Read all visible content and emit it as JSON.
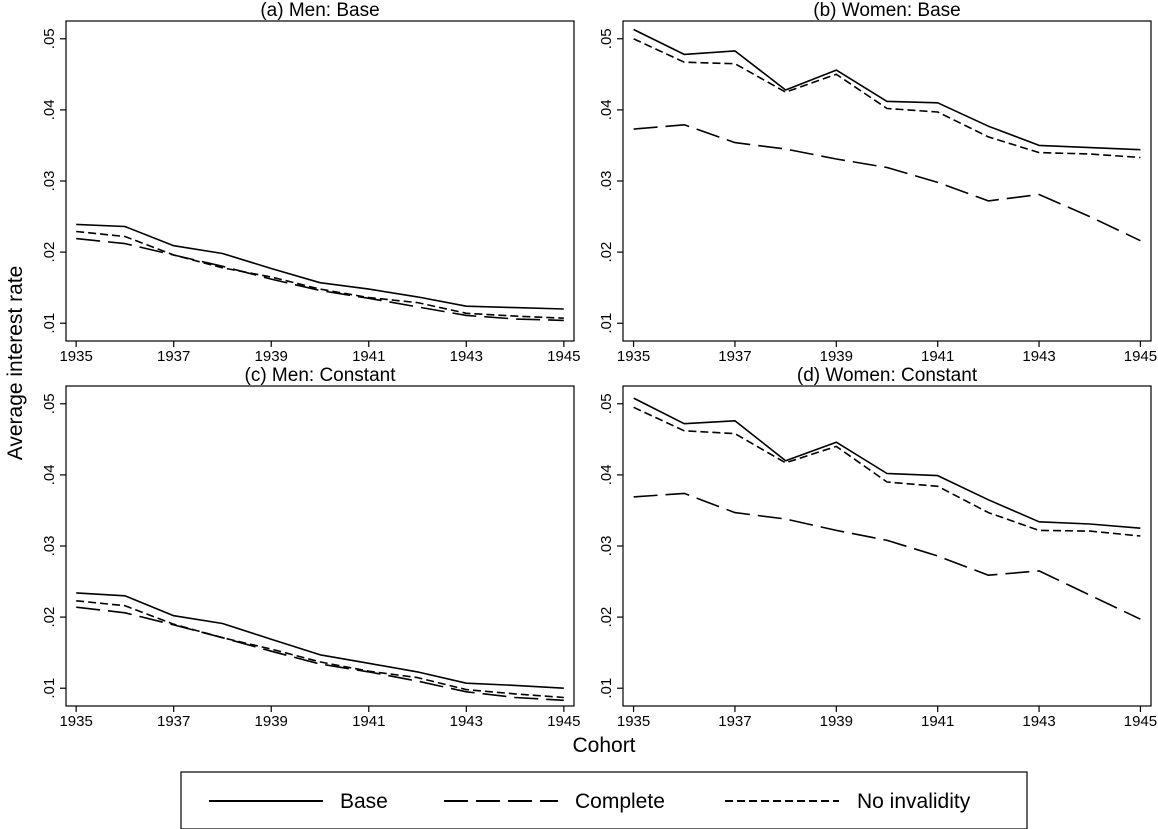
{
  "figure": {
    "ylabel": "Average interest rate",
    "xlabel": "Cohort"
  },
  "legend": {
    "position": "bottom",
    "entries": [
      {
        "label": "Base",
        "dash": "solid"
      },
      {
        "label": "Complete",
        "dash": "long-dash"
      },
      {
        "label": "No invalidity",
        "dash": "short-dash"
      }
    ]
  },
  "chart_data": [
    {
      "type": "line",
      "title": "(a) Men: Base",
      "x": [
        1935,
        1936,
        1937,
        1938,
        1939,
        1940,
        1941,
        1942,
        1943,
        1944,
        1945
      ],
      "xticks": [
        1935,
        1937,
        1939,
        1941,
        1943,
        1945
      ],
      "xtick_labels": [
        "1935",
        "1937",
        "1939",
        "1941",
        "1943",
        "1945"
      ],
      "yticks": [
        0.01,
        0.02,
        0.03,
        0.04,
        0.05
      ],
      "ytick_labels": [
        ".01",
        ".02",
        ".03",
        ".04",
        ".05"
      ],
      "ylim": [
        0.0075,
        0.0525
      ],
      "grid": false,
      "series": [
        {
          "name": "Base",
          "values": [
            0.0239,
            0.0236,
            0.0209,
            0.0198,
            0.0177,
            0.0157,
            0.0148,
            0.0137,
            0.0124,
            0.0122,
            0.012
          ]
        },
        {
          "name": "Complete",
          "values": [
            0.0219,
            0.0212,
            0.0196,
            0.018,
            0.0162,
            0.0146,
            0.0135,
            0.0123,
            0.0111,
            0.0106,
            0.0104
          ]
        },
        {
          "name": "No invalidity",
          "values": [
            0.0229,
            0.0222,
            0.0196,
            0.0178,
            0.0165,
            0.0148,
            0.0136,
            0.0129,
            0.0114,
            0.011,
            0.0107
          ]
        }
      ]
    },
    {
      "type": "line",
      "title": "(b) Women: Base",
      "x": [
        1935,
        1936,
        1937,
        1938,
        1939,
        1940,
        1941,
        1942,
        1943,
        1944,
        1945
      ],
      "xticks": [
        1935,
        1937,
        1939,
        1941,
        1943,
        1945
      ],
      "xtick_labels": [
        "1935",
        "1937",
        "1939",
        "1941",
        "1943",
        "1945"
      ],
      "yticks": [
        0.01,
        0.02,
        0.03,
        0.04,
        0.05
      ],
      "ytick_labels": [
        ".01",
        ".02",
        ".03",
        ".04",
        ".05"
      ],
      "ylim": [
        0.0075,
        0.0525
      ],
      "grid": false,
      "series": [
        {
          "name": "Base",
          "values": [
            0.0513,
            0.0478,
            0.0483,
            0.0428,
            0.0456,
            0.0412,
            0.041,
            0.0377,
            0.035,
            0.0347,
            0.0344
          ]
        },
        {
          "name": "Complete",
          "values": [
            0.0373,
            0.0379,
            0.0354,
            0.0345,
            0.0331,
            0.0319,
            0.0298,
            0.0272,
            0.0281,
            0.025,
            0.0216
          ]
        },
        {
          "name": "No invalidity",
          "values": [
            0.05,
            0.0467,
            0.0465,
            0.0425,
            0.045,
            0.0402,
            0.0397,
            0.0362,
            0.034,
            0.0338,
            0.0333
          ]
        }
      ]
    },
    {
      "type": "line",
      "title": "(c) Men: Constant",
      "x": [
        1935,
        1936,
        1937,
        1938,
        1939,
        1940,
        1941,
        1942,
        1943,
        1944,
        1945
      ],
      "xticks": [
        1935,
        1937,
        1939,
        1941,
        1943,
        1945
      ],
      "xtick_labels": [
        "1935",
        "1937",
        "1939",
        "1941",
        "1943",
        "1945"
      ],
      "yticks": [
        0.01,
        0.02,
        0.03,
        0.04,
        0.05
      ],
      "ytick_labels": [
        ".01",
        ".02",
        ".03",
        ".04",
        ".05"
      ],
      "ylim": [
        0.0075,
        0.0525
      ],
      "grid": false,
      "series": [
        {
          "name": "Base",
          "values": [
            0.0234,
            0.023,
            0.0202,
            0.0191,
            0.0169,
            0.0147,
            0.0135,
            0.0123,
            0.0107,
            0.0104,
            0.01
          ]
        },
        {
          "name": "Complete",
          "values": [
            0.0214,
            0.0206,
            0.0189,
            0.0171,
            0.0152,
            0.0134,
            0.0123,
            0.011,
            0.0095,
            0.0087,
            0.0083
          ]
        },
        {
          "name": "No invalidity",
          "values": [
            0.0223,
            0.0216,
            0.019,
            0.0171,
            0.0155,
            0.0137,
            0.0124,
            0.0115,
            0.0098,
            0.0092,
            0.0087
          ]
        }
      ]
    },
    {
      "type": "line",
      "title": "(d) Women: Constant",
      "x": [
        1935,
        1936,
        1937,
        1938,
        1939,
        1940,
        1941,
        1942,
        1943,
        1944,
        1945
      ],
      "xticks": [
        1935,
        1937,
        1939,
        1941,
        1943,
        1945
      ],
      "xtick_labels": [
        "1935",
        "1937",
        "1939",
        "1941",
        "1943",
        "1945"
      ],
      "yticks": [
        0.01,
        0.02,
        0.03,
        0.04,
        0.05
      ],
      "ytick_labels": [
        ".01",
        ".02",
        ".03",
        ".04",
        ".05"
      ],
      "ylim": [
        0.0075,
        0.0525
      ],
      "grid": false,
      "series": [
        {
          "name": "Base",
          "values": [
            0.0508,
            0.0472,
            0.0476,
            0.042,
            0.0446,
            0.0402,
            0.0399,
            0.0365,
            0.0334,
            0.0331,
            0.0325
          ]
        },
        {
          "name": "Complete",
          "values": [
            0.0369,
            0.0374,
            0.0347,
            0.0338,
            0.0322,
            0.0308,
            0.0286,
            0.0259,
            0.0265,
            0.0231,
            0.0197
          ]
        },
        {
          "name": "No invalidity",
          "values": [
            0.0495,
            0.0462,
            0.0458,
            0.0417,
            0.044,
            0.039,
            0.0384,
            0.0347,
            0.0322,
            0.0321,
            0.0314
          ]
        }
      ]
    }
  ]
}
